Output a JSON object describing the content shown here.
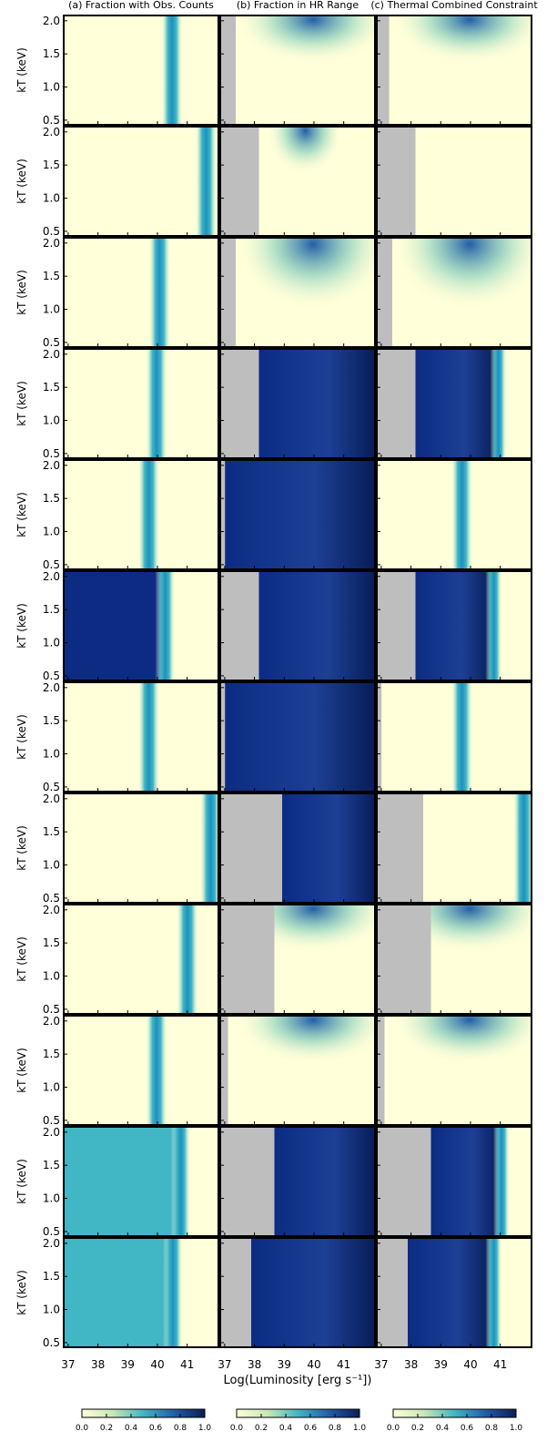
{
  "chart_data": {
    "type": "heatmap",
    "panel_titles": [
      "(a) Fraction with Obs. Counts",
      "(b) Fraction in HR Range",
      "(c) Thermal Combined Constraint"
    ],
    "xlabel": "Log(Luminosity [erg s⁻¹])",
    "ylabel": "kT (keV)",
    "xlim": [
      36.85,
      42.05
    ],
    "xticks": [
      37,
      38,
      39,
      40,
      41
    ],
    "ylim": [
      0.43,
      2.08
    ],
    "yticks": [
      0.5,
      {
        "value": 1,
        "label": "1.0"
      },
      1.5,
      {
        "value": 2,
        "label": "2.0"
      }
    ],
    "colorbar_ticks": [
      {
        "value": 0,
        "label": "0.0"
      },
      0.2,
      0.4,
      0.6,
      0.8,
      {
        "value": 1,
        "label": "1.0"
      }
    ],
    "colormap": [
      "#ffffd9",
      "#c7e9b4",
      "#41b6c4",
      "#225ea8",
      "#081d58"
    ],
    "missing_color": "#bebebe"
  }
}
